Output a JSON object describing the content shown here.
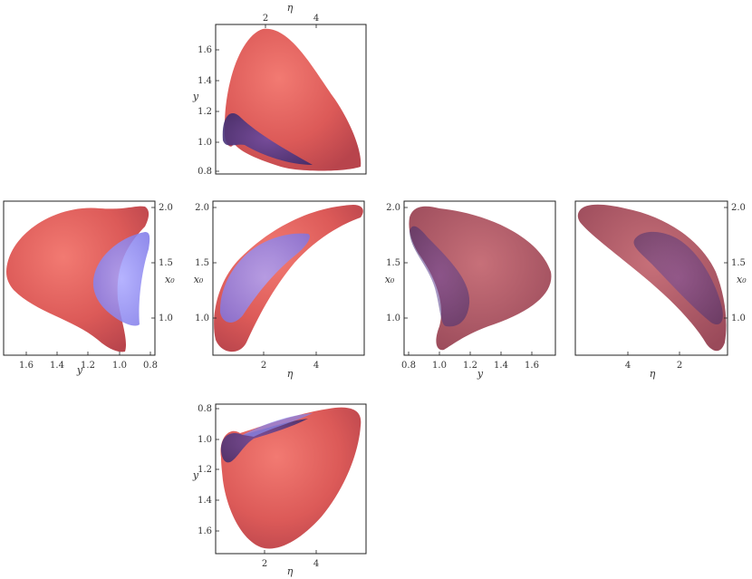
{
  "panels": [
    {
      "id": "top",
      "axes": {
        "x": {
          "label": "η",
          "position": "top",
          "ticks": [
            "2",
            "4"
          ]
        },
        "y": {
          "label": "y",
          "position": "left",
          "ticks": [
            "1.6",
            "1.4",
            "1.2",
            "1.0",
            "0.8"
          ]
        }
      }
    },
    {
      "id": "left",
      "axes": {
        "x": {
          "label": "y",
          "position": "bottom",
          "ticks": [
            "1.6",
            "1.4",
            "1.2",
            "1.0",
            "0.8"
          ]
        },
        "y": {
          "label": "x₀",
          "position": "right",
          "ticks": [
            "2.0",
            "1.5",
            "1.0"
          ]
        }
      }
    },
    {
      "id": "center",
      "axes": {
        "x": {
          "label": "η",
          "position": "bottom",
          "ticks": [
            "2",
            "4"
          ]
        },
        "y": {
          "label": "x₀",
          "position": "left",
          "ticks": [
            "2.0",
            "1.5",
            "1.0"
          ]
        }
      }
    },
    {
      "id": "center-right",
      "axes": {
        "x": {
          "label": "y",
          "position": "bottom",
          "ticks": [
            "0.8",
            "1.0",
            "1.2",
            "1.4",
            "1.6"
          ]
        },
        "y": {
          "label": "x₀",
          "position": "left",
          "ticks": [
            "2.0",
            "1.5",
            "1.0"
          ]
        }
      }
    },
    {
      "id": "right",
      "axes": {
        "x": {
          "label": "η",
          "position": "bottom",
          "ticks": [
            "4",
            "2"
          ]
        },
        "y": {
          "label": "x₀",
          "position": "right",
          "ticks": [
            "2.0",
            "1.5",
            "1.0"
          ]
        }
      }
    },
    {
      "id": "bottom",
      "axes": {
        "x": {
          "label": "η",
          "position": "bottom",
          "ticks": [
            "2",
            "4"
          ]
        },
        "y": {
          "label": "y",
          "position": "left",
          "ticks": [
            "0.8",
            "1.0",
            "1.2",
            "1.4",
            "1.6"
          ]
        }
      }
    }
  ],
  "colors": {
    "outer_surface": "#e05a5a",
    "inner_surface": "#7a7ae8",
    "frame": "#222222"
  }
}
